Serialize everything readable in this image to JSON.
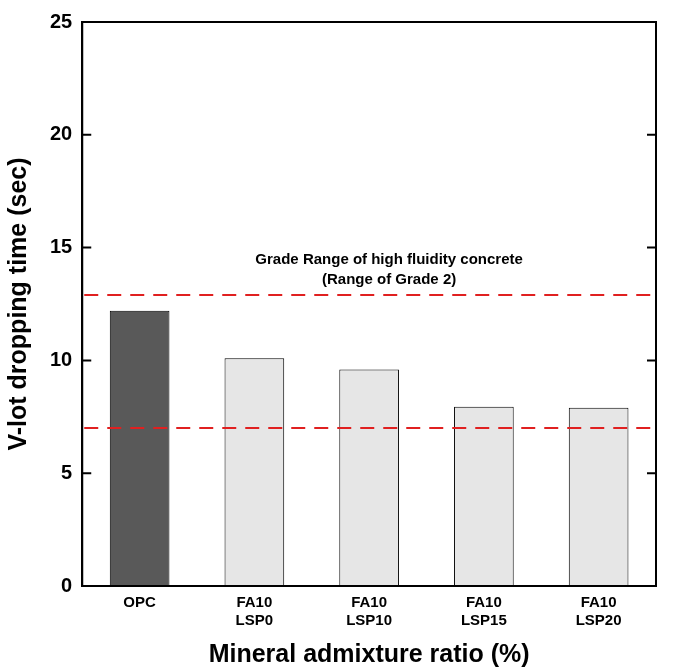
{
  "chart_data": {
    "type": "bar",
    "x_label": "Mineral admixture ratio (%)",
    "y_label": "V-lot dropping time (sec)",
    "categories": [
      "OPC",
      "FA10 LSP0",
      "FA10 LSP10",
      "FA10 LSP15",
      "FA10 LSP20"
    ],
    "values": [
      12.2,
      10.1,
      9.6,
      7.95,
      7.9
    ],
    "colors": [
      "#595959",
      "#e6e6e6",
      "#e6e6e6",
      "#e6e6e6",
      "#e6e6e6"
    ],
    "ylim": [
      0,
      25
    ],
    "yticks": [
      0,
      5,
      10,
      15,
      20,
      25
    ],
    "grid": false,
    "annotations": [
      {
        "text": [
          "Grade Range of high fluidity concrete",
          "(Range of Grade 2)"
        ],
        "range": [
          7.0,
          12.9
        ],
        "color": "#e02020",
        "line_style": "dashed"
      }
    ]
  }
}
